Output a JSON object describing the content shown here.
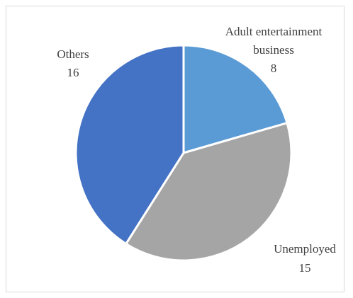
{
  "chart_data": {
    "type": "pie",
    "slices": [
      {
        "name": "Adult entertainment business",
        "value": 8,
        "color": "#5b9bd5"
      },
      {
        "name": "Unemployed",
        "value": 15,
        "color": "#a5a5a5"
      },
      {
        "name": "Others",
        "value": 16,
        "color": "#4472c4"
      }
    ],
    "total": 39,
    "start_angle_deg": 0,
    "direction": "clockwise",
    "slice_border_color": "#ffffff",
    "data_labels": true,
    "legend": false,
    "title": ""
  }
}
